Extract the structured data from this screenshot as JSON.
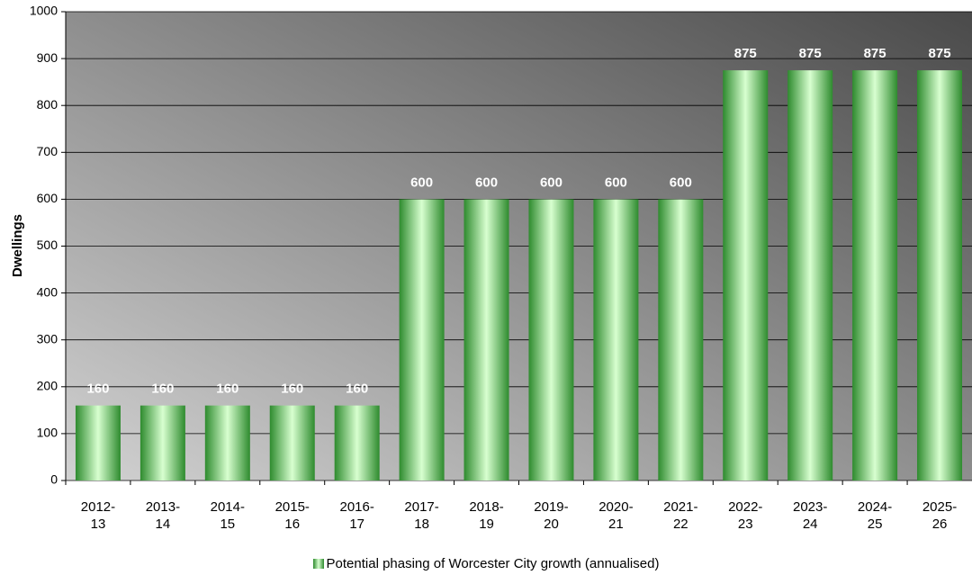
{
  "chart_data": {
    "type": "bar",
    "y_label": "Dwellings",
    "categories": [
      "2012-13",
      "2013-14",
      "2014-15",
      "2015-16",
      "2016-17",
      "2017-18",
      "2018-19",
      "2019-20",
      "2020-21",
      "2021-22",
      "2022-23",
      "2023-24",
      "2024-25",
      "2025-26"
    ],
    "series": [
      {
        "name": "Potential phasing of Worcester City growth (annualised)",
        "color": "#2e8b2e",
        "values": [
          160,
          160,
          160,
          160,
          160,
          600,
          600,
          600,
          600,
          600,
          875,
          875,
          875,
          875
        ]
      }
    ],
    "ylim": [
      0,
      1000
    ],
    "yticks": [
      0,
      100,
      200,
      300,
      400,
      500,
      600,
      700,
      800,
      900,
      1000
    ],
    "grid": true
  }
}
